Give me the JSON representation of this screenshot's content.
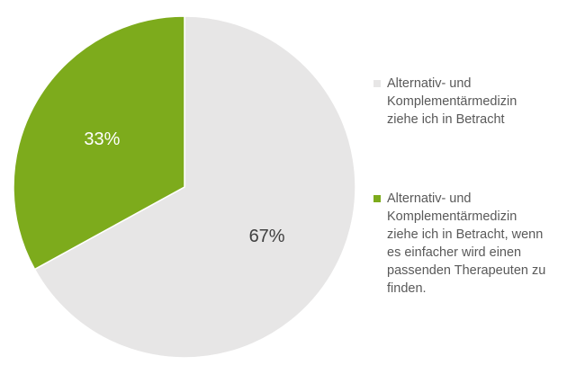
{
  "chart_data": {
    "type": "pie",
    "slices": [
      {
        "label": "Alternativ- und\nKomplementärmedizin\nziehe ich in Betracht",
        "value": 67,
        "data_label": "67%",
        "color": "#e7e6e6",
        "label_color": "#404040"
      },
      {
        "label": "Alternativ- und\nKomplementärmedizin\nziehe ich in Betracht, wenn\nes einfacher wird einen\npassenden Therapeuten zu\nfinden.",
        "value": 33,
        "data_label": "33%",
        "color": "#7dab1c",
        "label_color": "#ffffff"
      }
    ],
    "legend_position": "right"
  }
}
